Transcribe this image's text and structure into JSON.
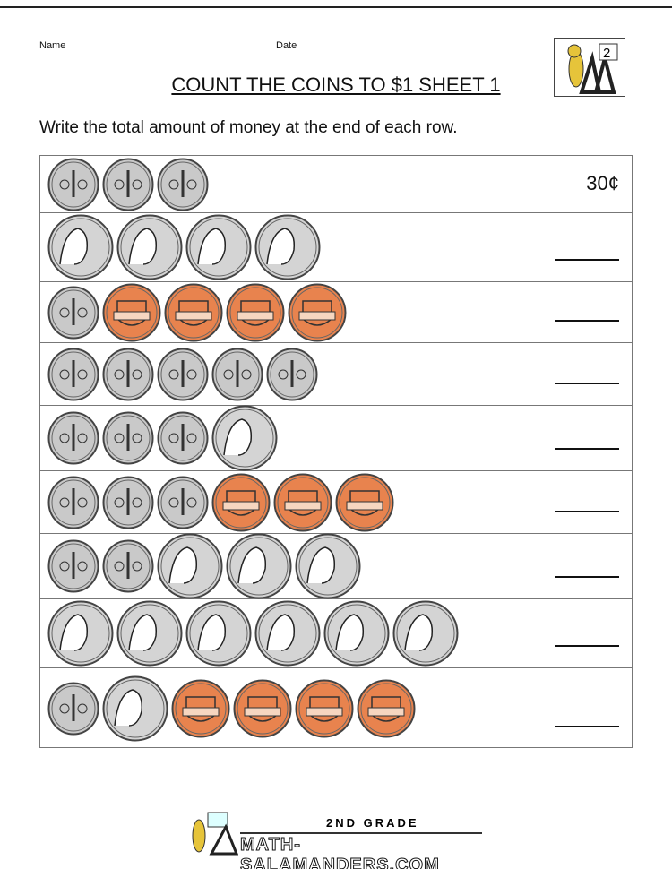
{
  "header": {
    "name_label": "Name",
    "date_label": "Date",
    "logo_text": "2"
  },
  "title": "COUNT THE COINS TO $1 SHEET 1",
  "instruction": "Write the total amount of money at the end of each row.",
  "coin_colors": {
    "dime": "#c9c9c9",
    "nickel": "#d4d4d4",
    "penny": "#e8834e"
  },
  "rows": [
    {
      "coins": [
        "dime",
        "dime",
        "dime"
      ],
      "answer": "30¢"
    },
    {
      "coins": [
        "nickel",
        "nickel",
        "nickel",
        "nickel"
      ],
      "answer": ""
    },
    {
      "coins": [
        "dime",
        "penny",
        "penny",
        "penny",
        "penny"
      ],
      "answer": ""
    },
    {
      "coins": [
        "dime",
        "dime",
        "dime",
        "dime",
        "dime"
      ],
      "answer": ""
    },
    {
      "coins": [
        "dime",
        "dime",
        "dime",
        "nickel"
      ],
      "answer": ""
    },
    {
      "coins": [
        "dime",
        "dime",
        "dime",
        "penny",
        "penny",
        "penny"
      ],
      "answer": ""
    },
    {
      "coins": [
        "dime",
        "dime",
        "nickel",
        "nickel",
        "nickel"
      ],
      "answer": ""
    },
    {
      "coins": [
        "nickel",
        "nickel",
        "nickel",
        "nickel",
        "nickel",
        "nickel"
      ],
      "answer": ""
    },
    {
      "coins": [
        "dime",
        "nickel",
        "penny",
        "penny",
        "penny",
        "penny"
      ],
      "answer": ""
    }
  ],
  "footer": {
    "grade": "2ND GRADE",
    "site": "MATH-SALAMANDERS.COM"
  }
}
